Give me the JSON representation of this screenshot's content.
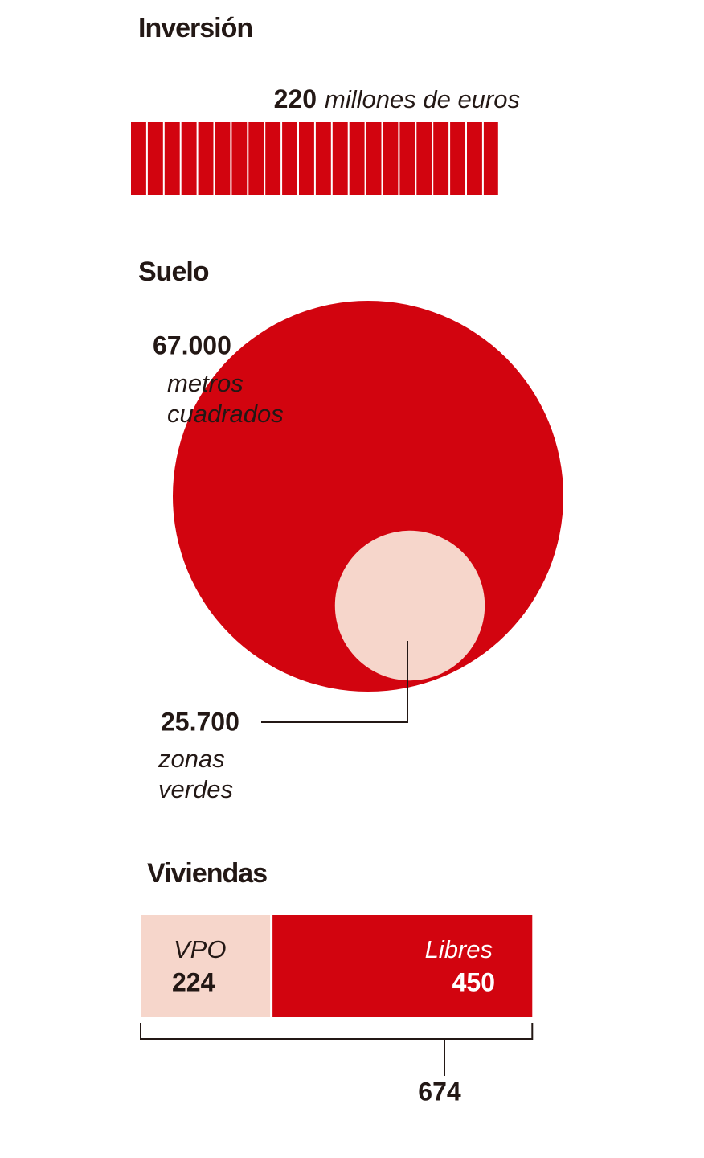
{
  "chart_data": [
    {
      "type": "bar",
      "title": "Inversión",
      "values": [
        220
      ],
      "unit": "millones de euros",
      "color": "#d2040f"
    },
    {
      "type": "bubble",
      "title": "Suelo",
      "values": [
        67000,
        25700
      ],
      "value_labels": [
        "67.000",
        "25.700"
      ],
      "labels": [
        "metros cuadrados",
        "zonas verdes"
      ],
      "colors": [
        "#d2040f",
        "#f6d6cb"
      ]
    },
    {
      "type": "stacked-bar",
      "title": "Viviendas",
      "categories": [
        "VPO",
        "Libres"
      ],
      "values": [
        224,
        450
      ],
      "total": 674,
      "colors": [
        "#f6d6cb",
        "#d2040f"
      ]
    }
  ]
}
